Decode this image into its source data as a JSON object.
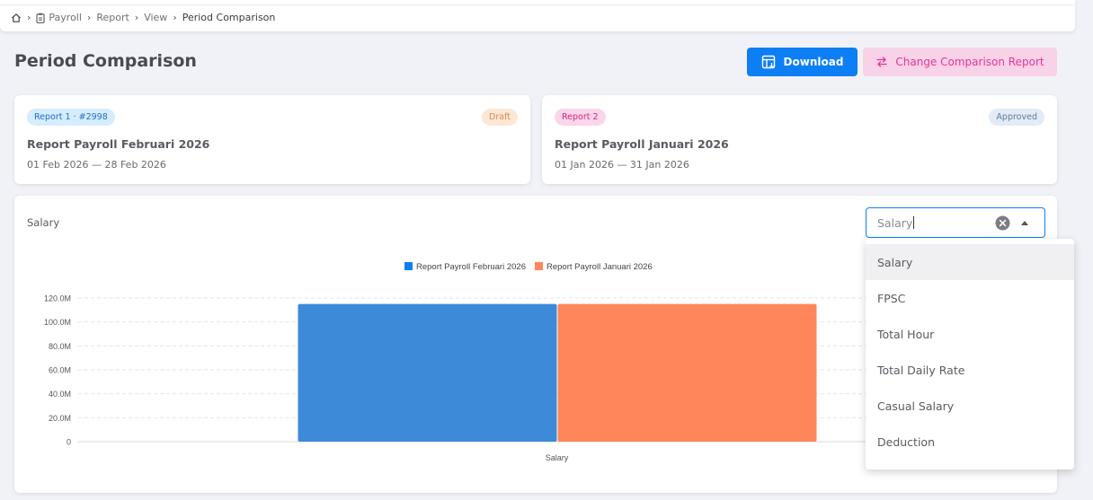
{
  "breadcrumb": {
    "items": [
      "Payroll",
      "Report",
      "View"
    ],
    "current": "Period Comparison"
  },
  "page": {
    "title": "Period Comparison"
  },
  "actions": {
    "download_label": "Download",
    "change_label": "Change Comparison Report"
  },
  "reports": [
    {
      "badge": "Report 1 · #2998",
      "status": "Draft",
      "title": "Report Payroll Februari 2026",
      "dates": "01 Feb 2026 — 28 Feb 2026"
    },
    {
      "badge": "Report 2",
      "status": "Approved",
      "title": "Report Payroll Januari 2026",
      "dates": "01 Jan 2026 — 31 Jan 2026"
    }
  ],
  "metric": {
    "label": "Salary",
    "selected": "Salary",
    "options": [
      "Salary",
      "FPSC",
      "Total Hour",
      "Total Daily Rate",
      "Casual Salary",
      "Deduction"
    ]
  },
  "colors": {
    "primary": "#0d7ff5",
    "series1": "#3d8ad9",
    "series2": "#ff865a",
    "accent_pink": "#e8339b"
  },
  "chart_data": {
    "type": "bar",
    "categories": [
      "Salary"
    ],
    "series": [
      {
        "name": "Report Payroll Februari 2026",
        "values": [
          115000000
        ]
      },
      {
        "name": "Report Payroll Januari 2026",
        "values": [
          115000000
        ]
      }
    ],
    "ylim": [
      0,
      120000000
    ],
    "yticks": [
      "0",
      "20.0M",
      "40.0M",
      "60.0M",
      "80.0M",
      "100.0M",
      "120.0M"
    ],
    "legend": "top-center",
    "grid": true
  }
}
